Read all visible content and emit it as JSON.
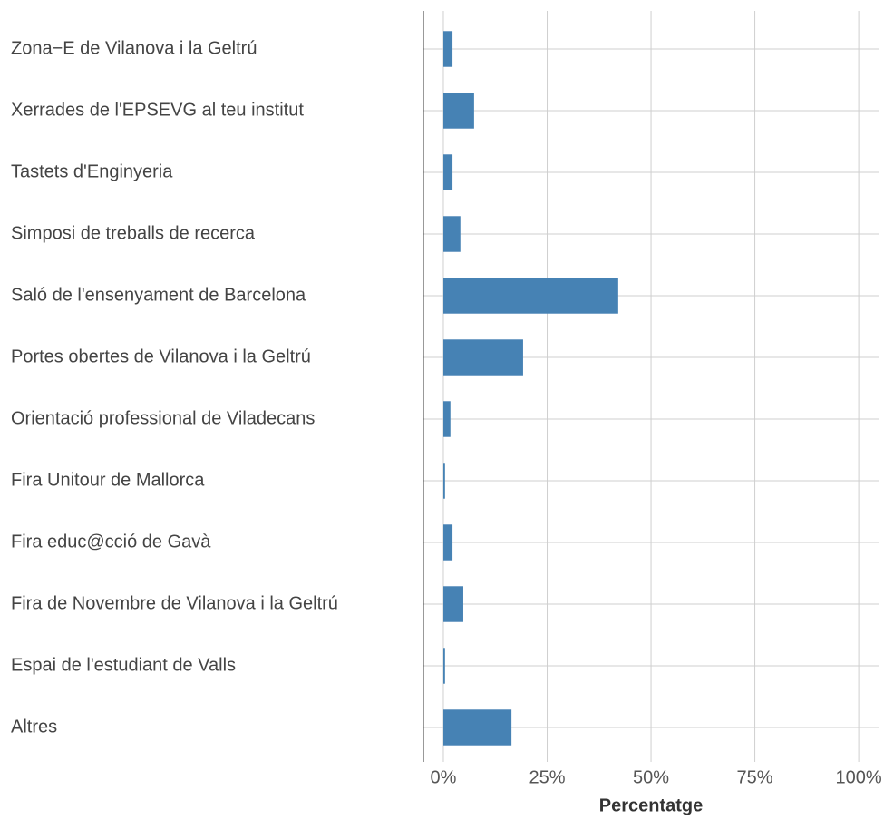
{
  "chart_data": {
    "type": "barh",
    "categories": [
      "Zona−E de Vilanova i la Geltrú",
      "Xerrades de l'EPSEVG al teu institut",
      "Tastets d'Enginyeria",
      "Simposi de treballs de recerca",
      "Saló de l'ensenyament de Barcelona",
      "Portes obertes de Vilanova i la Geltrú",
      "Orientació professional de Viladecans",
      "Fira Unitour de Mallorca",
      "Fira educ@cció de Gavà",
      "Fira de Novembre de Vilanova i la Geltrú",
      "Espai de l'estudiant de Valls",
      "Altres"
    ],
    "values": [
      2.2,
      7.4,
      2.2,
      4.1,
      42.1,
      19.2,
      1.7,
      0.4,
      2.2,
      4.8,
      0.4,
      16.4
    ],
    "color": "#4682b4",
    "x_label": "Percentatge",
    "xlim": [
      -4.8,
      105
    ],
    "xticks": [
      {
        "value": 0,
        "label": "0%"
      },
      {
        "value": 25,
        "label": "25%"
      },
      {
        "value": 50,
        "label": "50%"
      },
      {
        "value": 75,
        "label": "75%"
      },
      {
        "value": 100,
        "label": "100%"
      }
    ],
    "grid": true
  }
}
